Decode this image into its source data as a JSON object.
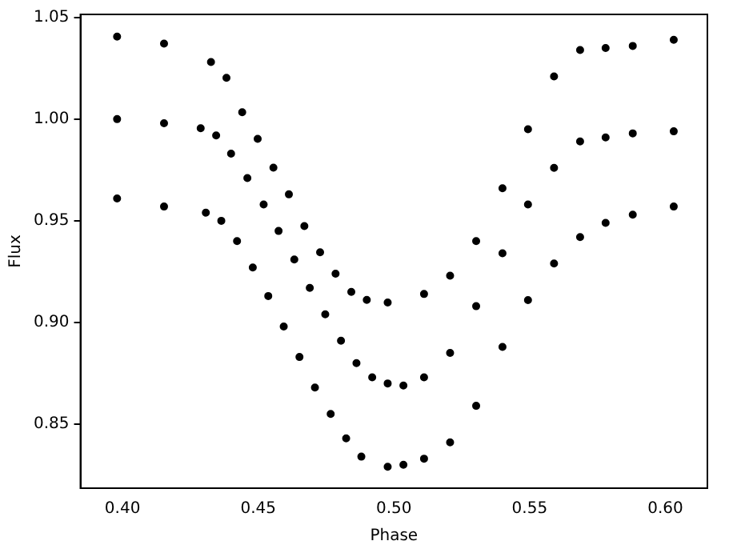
{
  "chart_data": {
    "type": "scatter",
    "xlabel": "Phase",
    "ylabel": "Flux",
    "xlim": [
      0.3845,
      0.6155
    ],
    "ylim": [
      0.8185,
      1.0515
    ],
    "xticks": [
      {
        "value": 0.4,
        "label": "0.40"
      },
      0.45,
      {
        "value": 0.5,
        "label": "0.50"
      },
      0.55,
      {
        "value": 0.6,
        "label": "0.60"
      }
    ],
    "yticks": [
      0.85,
      {
        "value": 0.9,
        "label": "0.90"
      },
      0.95,
      {
        "value": 1.0,
        "label": "1.00"
      },
      1.05
    ],
    "grid": false,
    "legend": false,
    "marker": "circle",
    "series": [
      {
        "color": "#000000",
        "x": [
          0.398,
          0.4153,
          0.4326,
          0.4383,
          0.4441,
          0.4498,
          0.4556,
          0.4613,
          0.467,
          0.4728,
          0.4785,
          0.4843,
          0.49,
          0.4977,
          0.5111,
          0.5207,
          0.5303,
          0.54,
          0.5494,
          0.559,
          0.5686,
          0.578,
          0.588,
          0.6031
        ],
        "values": [
          1.0406,
          1.0371,
          1.0281,
          1.0203,
          1.0034,
          0.9903,
          0.9761,
          0.963,
          0.9474,
          0.9345,
          0.924,
          0.915,
          0.9111,
          0.9098,
          0.914,
          0.923,
          0.94,
          0.966,
          0.995,
          1.021,
          1.034,
          1.035,
          1.036,
          1.039
        ]
      },
      {
        "color": "#000000",
        "x": [
          0.398,
          0.4153,
          0.4288,
          0.4345,
          0.44,
          0.446,
          0.452,
          0.4575,
          0.4633,
          0.469,
          0.4747,
          0.4805,
          0.4862,
          0.492,
          0.4977,
          0.5035,
          0.5111,
          0.5207,
          0.5303,
          0.54,
          0.5494,
          0.559,
          0.5686,
          0.578,
          0.588,
          0.6031
        ],
        "values": [
          1.0,
          0.998,
          0.9955,
          0.992,
          0.983,
          0.971,
          0.958,
          0.945,
          0.931,
          0.917,
          0.904,
          0.891,
          0.88,
          0.873,
          0.87,
          0.869,
          0.873,
          0.885,
          0.908,
          0.934,
          0.958,
          0.976,
          0.989,
          0.991,
          0.993,
          0.994
        ]
      },
      {
        "color": "#000000",
        "x": [
          0.398,
          0.4153,
          0.4307,
          0.4364,
          0.4422,
          0.448,
          0.4537,
          0.4594,
          0.4652,
          0.4709,
          0.4767,
          0.4824,
          0.488,
          0.4977,
          0.5035,
          0.5111,
          0.5207,
          0.5303,
          0.54,
          0.5494,
          0.559,
          0.5686,
          0.578,
          0.588,
          0.6031
        ],
        "values": [
          0.961,
          0.957,
          0.954,
          0.95,
          0.94,
          0.927,
          0.913,
          0.898,
          0.883,
          0.868,
          0.855,
          0.843,
          0.834,
          0.829,
          0.83,
          0.833,
          0.841,
          0.859,
          0.888,
          0.911,
          0.929,
          0.942,
          0.949,
          0.953,
          0.957
        ]
      }
    ]
  }
}
